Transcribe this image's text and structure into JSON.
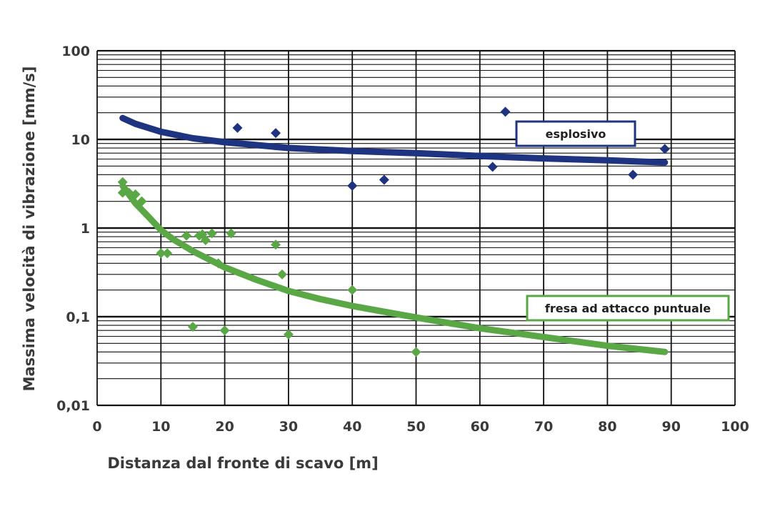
{
  "chart_data": {
    "type": "scatter",
    "title": "",
    "xlabel": "Distanza dal fronte di scavo [m]",
    "ylabel": "Massima velocità di vibrazione [mm/s]",
    "xlim": [
      0,
      100
    ],
    "ylim": [
      0.01,
      100
    ],
    "y_scale": "log",
    "grid": true,
    "x_ticks": [
      0,
      10,
      20,
      30,
      40,
      50,
      60,
      70,
      80,
      90,
      100
    ],
    "x_tick_labels": [
      "0",
      "10",
      "20",
      "30",
      "40",
      "50",
      "60",
      "70",
      "80",
      "90",
      "100"
    ],
    "y_ticks": [
      0.01,
      0.1,
      1,
      10,
      100
    ],
    "y_tick_labels": [
      "0,01",
      "0,1",
      "1",
      "10",
      "100"
    ],
    "series": [
      {
        "name": "esplosivo",
        "color": "#1f3480",
        "marker": "diamond",
        "legend_placement": "top-right",
        "points": [
          {
            "x": 22,
            "y": 13.5
          },
          {
            "x": 28,
            "y": 11.8
          },
          {
            "x": 40,
            "y": 3.0
          },
          {
            "x": 45,
            "y": 3.5
          },
          {
            "x": 62,
            "y": 4.9
          },
          {
            "x": 64,
            "y": 20.5
          },
          {
            "x": 84,
            "y": 4.0
          },
          {
            "x": 89,
            "y": 7.8
          }
        ],
        "trend": [
          {
            "x": 4,
            "y": 17.4
          },
          {
            "x": 6,
            "y": 15.0
          },
          {
            "x": 10,
            "y": 12.2
          },
          {
            "x": 15,
            "y": 10.3
          },
          {
            "x": 20,
            "y": 9.3
          },
          {
            "x": 30,
            "y": 8.0
          },
          {
            "x": 40,
            "y": 7.4
          },
          {
            "x": 50,
            "y": 7.0
          },
          {
            "x": 60,
            "y": 6.5
          },
          {
            "x": 70,
            "y": 6.1
          },
          {
            "x": 80,
            "y": 5.8
          },
          {
            "x": 89,
            "y": 5.5
          }
        ]
      },
      {
        "name": "fresa ad attacco puntuale",
        "color": "#5aa845",
        "marker": "diamond",
        "legend_placement": "right",
        "points": [
          {
            "x": 4,
            "y": 3.3
          },
          {
            "x": 4,
            "y": 2.5
          },
          {
            "x": 5,
            "y": 2.5
          },
          {
            "x": 6,
            "y": 2.4
          },
          {
            "x": 7,
            "y": 2.0
          },
          {
            "x": 10,
            "y": 0.52
          },
          {
            "x": 11,
            "y": 0.52
          },
          {
            "x": 14,
            "y": 0.82
          },
          {
            "x": 15,
            "y": 0.077
          },
          {
            "x": 16,
            "y": 0.82
          },
          {
            "x": 16.5,
            "y": 0.85
          },
          {
            "x": 17,
            "y": 0.73
          },
          {
            "x": 18,
            "y": 0.87
          },
          {
            "x": 19,
            "y": 0.4
          },
          {
            "x": 20,
            "y": 0.07
          },
          {
            "x": 21,
            "y": 0.87
          },
          {
            "x": 28,
            "y": 0.65
          },
          {
            "x": 29,
            "y": 0.3
          },
          {
            "x": 30,
            "y": 0.063
          },
          {
            "x": 40,
            "y": 0.2
          },
          {
            "x": 50,
            "y": 0.04
          }
        ],
        "trend": [
          {
            "x": 4,
            "y": 3.0
          },
          {
            "x": 6,
            "y": 1.9
          },
          {
            "x": 8,
            "y": 1.35
          },
          {
            "x": 10,
            "y": 0.95
          },
          {
            "x": 12,
            "y": 0.74
          },
          {
            "x": 15,
            "y": 0.55
          },
          {
            "x": 20,
            "y": 0.36
          },
          {
            "x": 25,
            "y": 0.26
          },
          {
            "x": 30,
            "y": 0.195
          },
          {
            "x": 35,
            "y": 0.158
          },
          {
            "x": 40,
            "y": 0.132
          },
          {
            "x": 50,
            "y": 0.098
          },
          {
            "x": 60,
            "y": 0.074
          },
          {
            "x": 70,
            "y": 0.059
          },
          {
            "x": 80,
            "y": 0.047
          },
          {
            "x": 89,
            "y": 0.04
          }
        ]
      }
    ]
  }
}
